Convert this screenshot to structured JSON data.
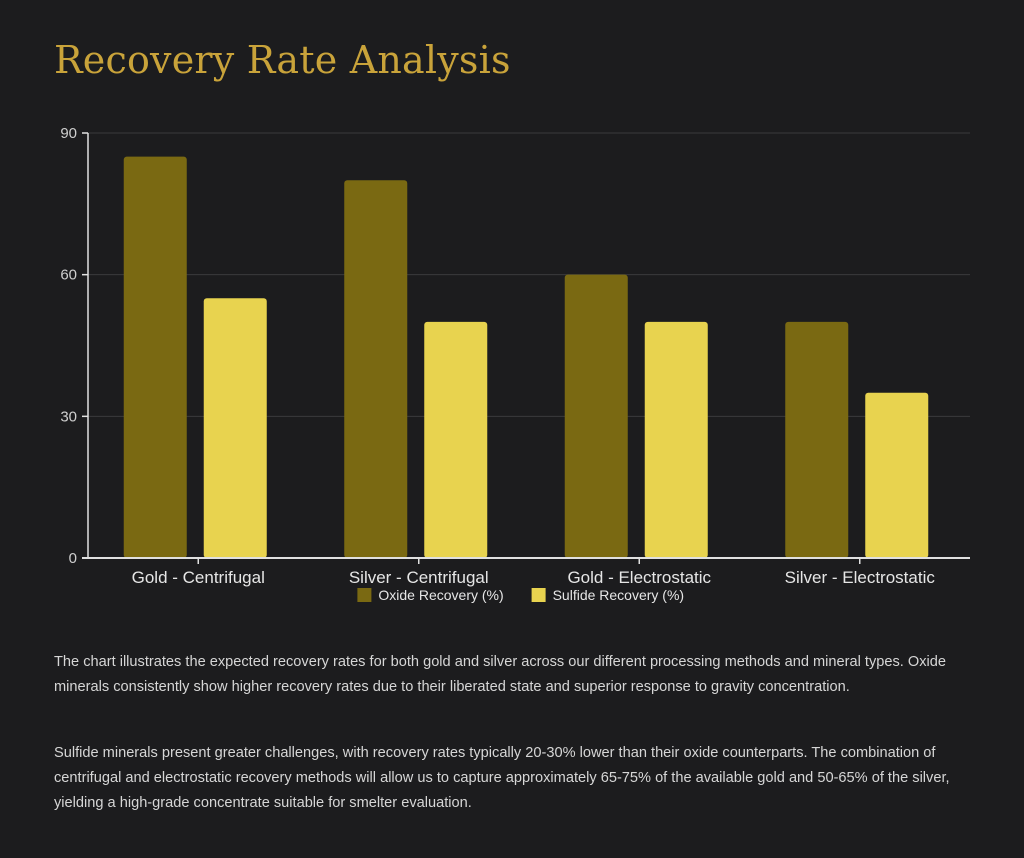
{
  "title": "Recovery Rate Analysis",
  "chart_data": {
    "type": "bar",
    "categories": [
      "Gold - Centrifugal",
      "Silver - Centrifugal",
      "Gold - Electrostatic",
      "Silver - Electrostatic"
    ],
    "series": [
      {
        "name": "Oxide Recovery (%)",
        "values": [
          85,
          80,
          60,
          50
        ],
        "color": "#7a6912"
      },
      {
        "name": "Sulfide Recovery (%)",
        "values": [
          55,
          50,
          50,
          35
        ],
        "color": "#e8d34f"
      }
    ],
    "ylim": [
      0,
      90
    ],
    "yticks": [
      0,
      30,
      60,
      90
    ],
    "grid": true,
    "legend": "bottom-center"
  },
  "description": [
    "The chart illustrates the expected recovery rates for both gold and silver across our different processing methods and mineral types. Oxide minerals consistently show higher recovery rates due to their liberated state and superior response to gravity concentration.",
    "Sulfide minerals present greater challenges, with recovery rates typically 20-30% lower than their oxide counterparts. The combination of centrifugal and electrostatic recovery methods will allow us to capture approximately 65-75% of the available gold and 50-65% of the silver, yielding a high-grade concentrate suitable for smelter evaluation."
  ]
}
